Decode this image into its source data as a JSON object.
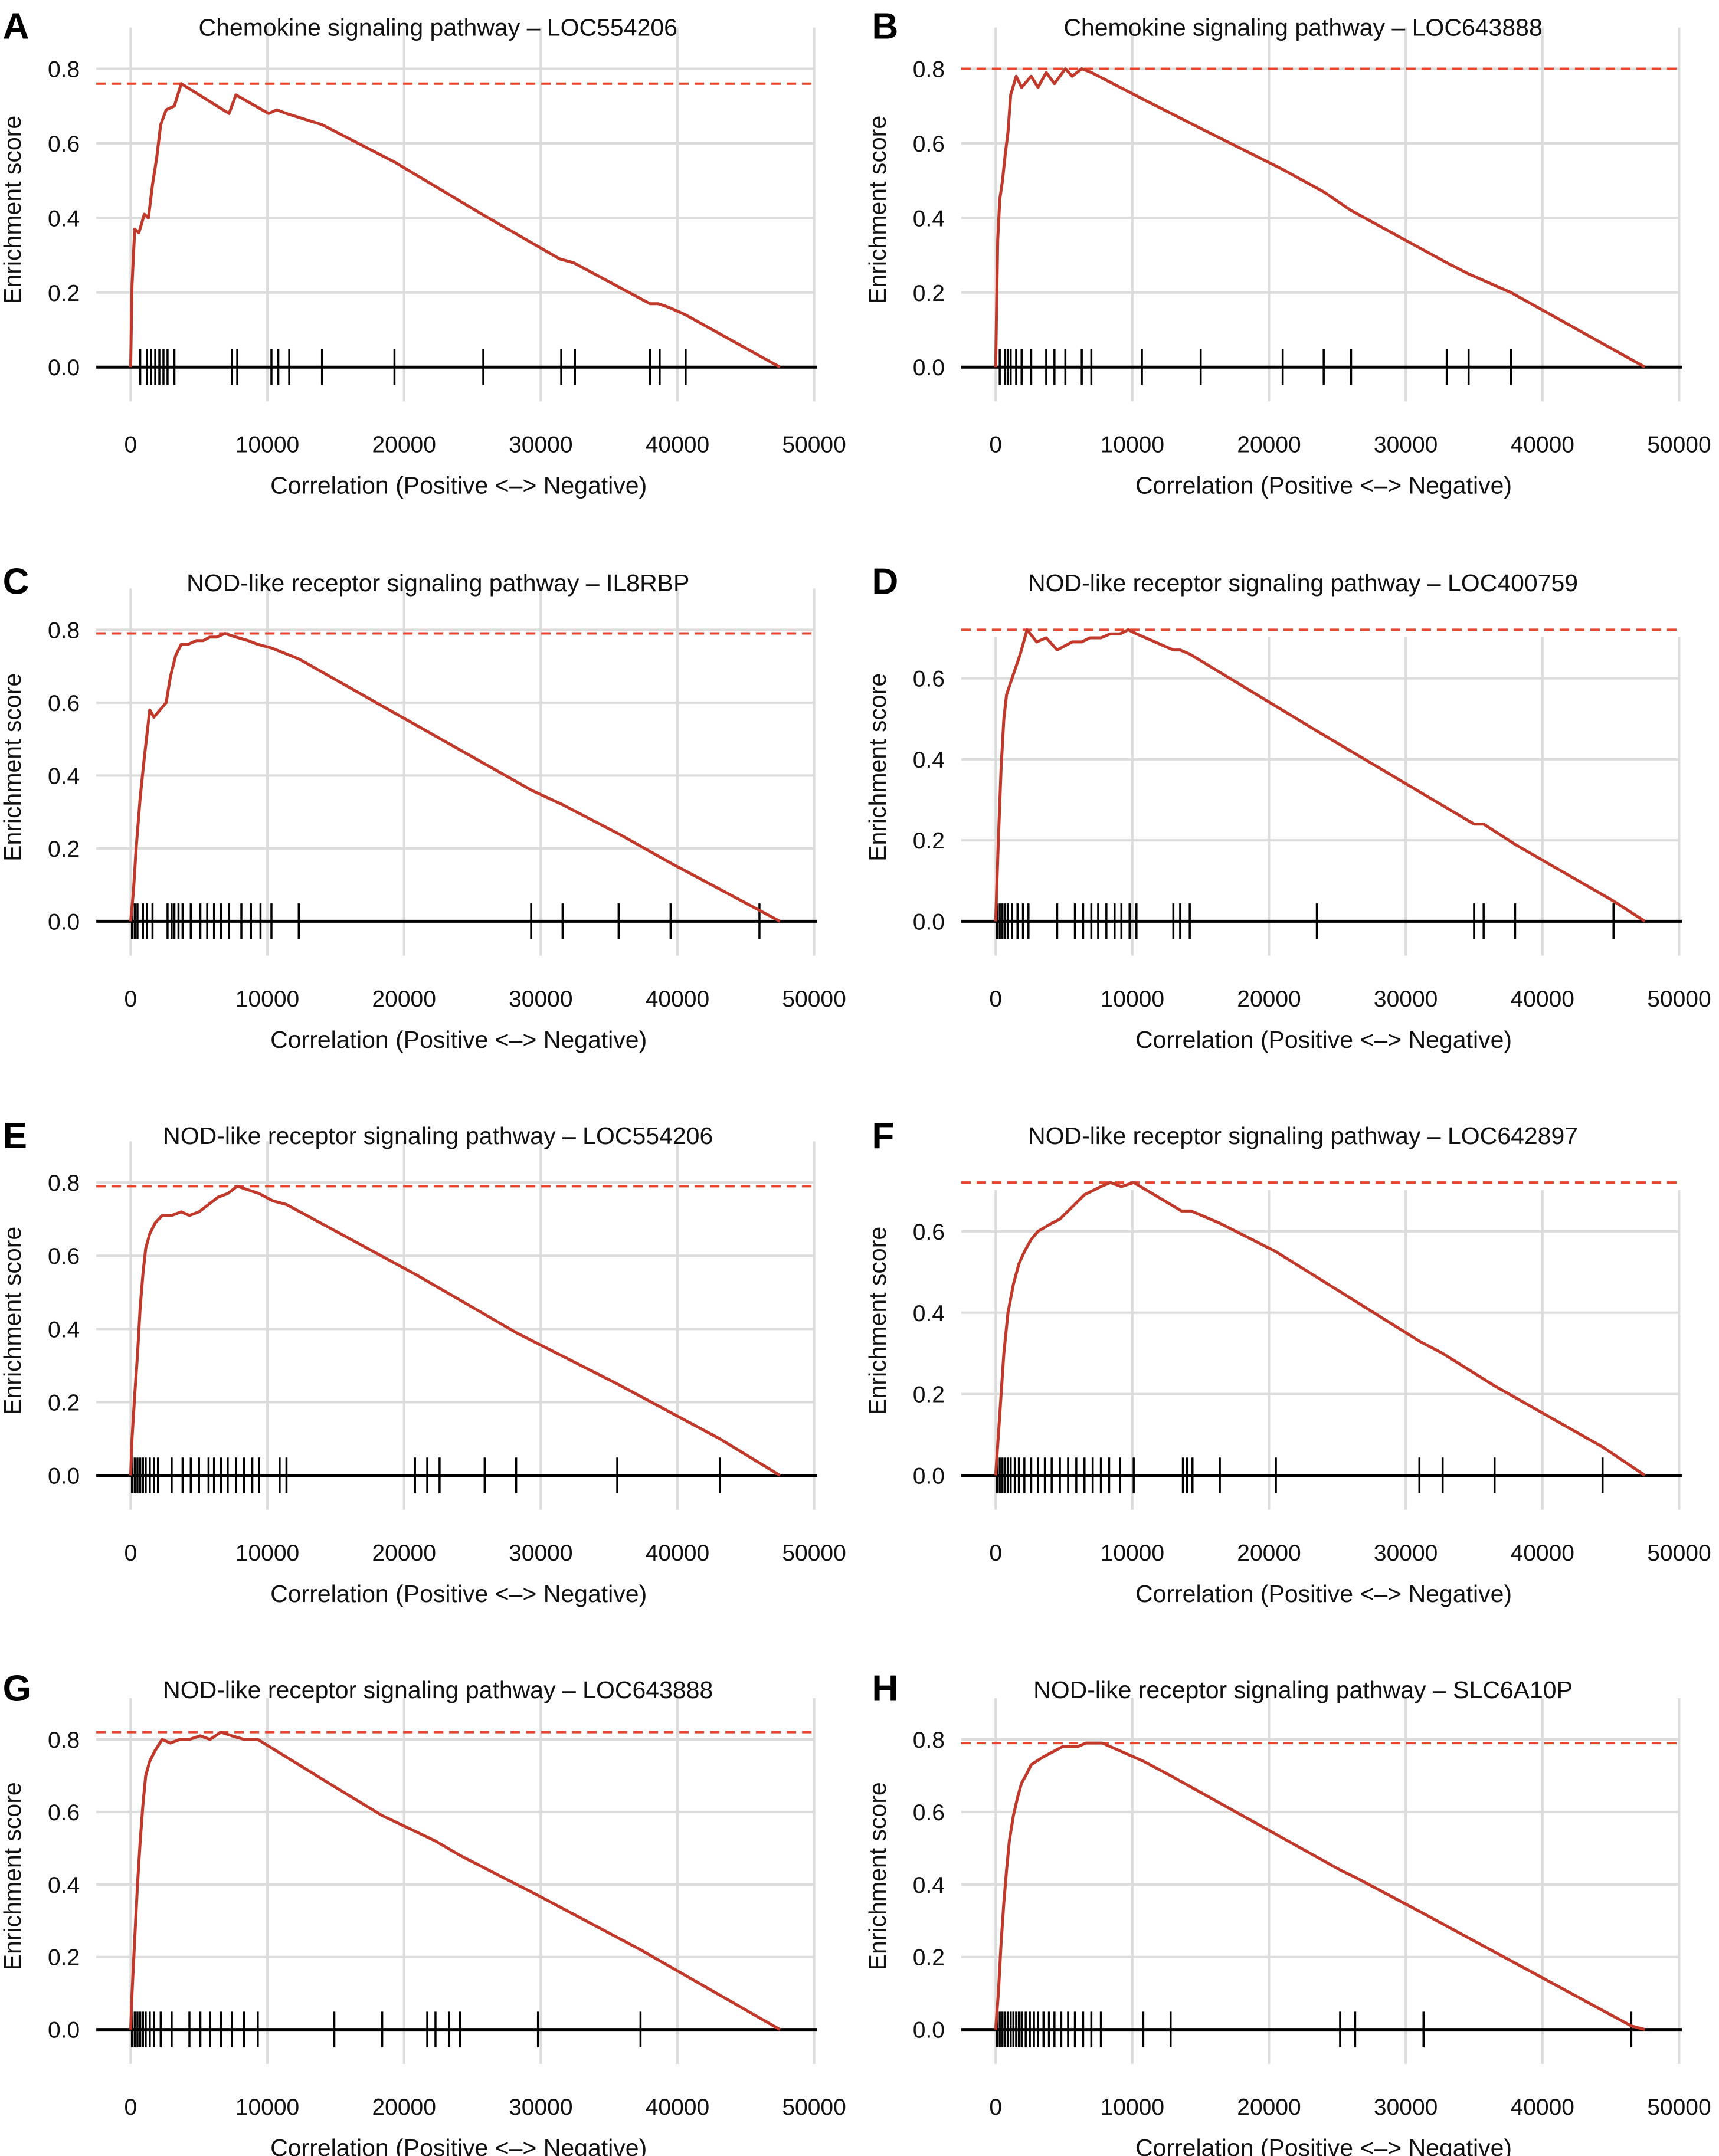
{
  "colors": {
    "curve": "#c0392b",
    "maxline": "#e8452f",
    "grid": "#dcdcdc",
    "axis": "#000000",
    "hits": "#000000"
  },
  "chart_data": [
    {
      "type": "line",
      "letter": "A",
      "title": "Chemokine signaling pathway – LOC554206",
      "xlabel": "Correlation (Positive <–> Negative)",
      "ylabel": "Enrichment score",
      "xlim": [
        0,
        50000
      ],
      "ylim": [
        0,
        0.8
      ],
      "xticks": [
        0,
        10000,
        20000,
        30000,
        40000,
        50000
      ],
      "yticks": [
        0,
        0.2,
        0.4,
        0.6,
        0.8
      ],
      "xtick_labels": [
        "0",
        "10000",
        "20000",
        "30000",
        "40000",
        "50000"
      ],
      "ytick_labels": [
        "0.0",
        "0.2",
        "0.4",
        "0.6",
        "0.8"
      ],
      "max_es": 0.76,
      "series": [
        {
          "x": [
            0,
            100,
            300,
            600,
            1000,
            1300,
            1600,
            1900,
            2200,
            2600,
            3200,
            3700,
            7200,
            7700,
            10100,
            10700,
            11400,
            14000,
            19300,
            25700,
            31400,
            32400,
            38000,
            38600,
            39400,
            40600,
            47500
          ],
          "y": [
            0,
            0.22,
            0.37,
            0.36,
            0.41,
            0.4,
            0.49,
            0.56,
            0.65,
            0.69,
            0.7,
            0.76,
            0.68,
            0.73,
            0.68,
            0.69,
            0.68,
            0.65,
            0.55,
            0.41,
            0.29,
            0.28,
            0.17,
            0.17,
            0.16,
            0.14,
            0
          ]
        }
      ],
      "hits": [
        700,
        1200,
        1500,
        1800,
        2100,
        2400,
        2700,
        3200,
        7400,
        7800,
        10300,
        10800,
        11600,
        14000,
        19300,
        25800,
        31500,
        32500,
        38000,
        38700,
        40600
      ]
    },
    {
      "type": "line",
      "letter": "B",
      "title": "Chemokine signaling pathway – LOC643888",
      "xlabel": "Correlation (Positive <–> Negative)",
      "ylabel": "Enrichment score",
      "xlim": [
        0,
        50000
      ],
      "ylim": [
        0,
        0.8
      ],
      "xticks": [
        0,
        10000,
        20000,
        30000,
        40000,
        50000
      ],
      "yticks": [
        0,
        0.2,
        0.4,
        0.6,
        0.8
      ],
      "xtick_labels": [
        "0",
        "10000",
        "20000",
        "30000",
        "40000",
        "50000"
      ],
      "ytick_labels": [
        "0.0",
        "0.2",
        "0.4",
        "0.6",
        "0.8"
      ],
      "max_es": 0.8,
      "series": [
        {
          "x": [
            0,
            150,
            300,
            500,
            700,
            900,
            1100,
            1500,
            1900,
            2600,
            3100,
            3700,
            4300,
            5100,
            5600,
            6300,
            7000,
            10700,
            15000,
            21000,
            24000,
            26000,
            33000,
            34600,
            37700,
            47500
          ],
          "y": [
            0,
            0.34,
            0.45,
            0.5,
            0.57,
            0.63,
            0.73,
            0.78,
            0.75,
            0.78,
            0.75,
            0.79,
            0.76,
            0.8,
            0.78,
            0.8,
            0.79,
            0.72,
            0.64,
            0.53,
            0.47,
            0.42,
            0.28,
            0.25,
            0.2,
            0
          ]
        }
      ],
      "hits": [
        300,
        700,
        900,
        1100,
        1500,
        1900,
        2600,
        3700,
        4300,
        5100,
        6300,
        7000,
        10700,
        15000,
        21000,
        24000,
        26000,
        33000,
        34600,
        37700
      ]
    },
    {
      "type": "line",
      "letter": "C",
      "title": "NOD-like receptor signaling pathway – IL8RBP",
      "xlabel": "Correlation (Positive <–> Negative)",
      "ylabel": "Enrichment score",
      "xlim": [
        0,
        50000
      ],
      "ylim": [
        0,
        0.8
      ],
      "xticks": [
        0,
        10000,
        20000,
        30000,
        40000,
        50000
      ],
      "yticks": [
        0,
        0.2,
        0.4,
        0.6,
        0.8
      ],
      "xtick_labels": [
        "0",
        "10000",
        "20000",
        "30000",
        "40000",
        "50000"
      ],
      "ytick_labels": [
        "0.0",
        "0.2",
        "0.4",
        "0.6",
        "0.8"
      ],
      "max_es": 0.79,
      "series": [
        {
          "x": [
            0,
            200,
            400,
            700,
            1000,
            1400,
            1700,
            2600,
            2900,
            3300,
            3700,
            4200,
            4800,
            5300,
            5800,
            6300,
            6900,
            7700,
            8600,
            9300,
            10300,
            12300,
            29300,
            31600,
            35700,
            39500,
            47500
          ],
          "y": [
            0,
            0.08,
            0.2,
            0.34,
            0.45,
            0.58,
            0.56,
            0.6,
            0.67,
            0.73,
            0.76,
            0.76,
            0.77,
            0.77,
            0.78,
            0.78,
            0.79,
            0.78,
            0.77,
            0.76,
            0.75,
            0.72,
            0.36,
            0.32,
            0.24,
            0.16,
            0
          ]
        }
      ],
      "hits": [
        100,
        300,
        500,
        900,
        1200,
        1600,
        2700,
        3000,
        3200,
        3500,
        3800,
        4400,
        5100,
        5600,
        6100,
        6600,
        7200,
        8100,
        8800,
        9500,
        10300,
        12300,
        29300,
        31600,
        35700,
        39500,
        46000
      ]
    },
    {
      "type": "line",
      "letter": "D",
      "title": "NOD-like receptor signaling pathway – LOC400759",
      "xlabel": "Correlation (Positive <–> Negative)",
      "ylabel": "Enrichment score",
      "xlim": [
        0,
        50000
      ],
      "ylim": [
        0,
        0.72
      ],
      "xticks": [
        0,
        10000,
        20000,
        30000,
        40000,
        50000
      ],
      "yticks": [
        0,
        0.2,
        0.4,
        0.6
      ],
      "xtick_labels": [
        "0",
        "10000",
        "20000",
        "30000",
        "40000",
        "50000"
      ],
      "ytick_labels": [
        "0.0",
        "0.2",
        "0.4",
        "0.6"
      ],
      "max_es": 0.72,
      "series": [
        {
          "x": [
            0,
            200,
            400,
            600,
            800,
            1100,
            1400,
            1800,
            2300,
            3000,
            3700,
            4500,
            5600,
            6300,
            6900,
            7700,
            8400,
            9100,
            9700,
            10300,
            13000,
            13500,
            14200,
            23500,
            35000,
            35700,
            38000,
            45200,
            47500
          ],
          "y": [
            0,
            0.2,
            0.38,
            0.5,
            0.56,
            0.59,
            0.62,
            0.66,
            0.72,
            0.69,
            0.7,
            0.67,
            0.69,
            0.69,
            0.7,
            0.7,
            0.71,
            0.71,
            0.72,
            0.71,
            0.67,
            0.67,
            0.66,
            0.47,
            0.24,
            0.24,
            0.19,
            0.05,
            0
          ]
        }
      ],
      "hits": [
        100,
        300,
        500,
        700,
        900,
        1200,
        1600,
        2000,
        2400,
        4500,
        5800,
        6400,
        7000,
        7500,
        8100,
        8700,
        9200,
        9800,
        10300,
        13000,
        13500,
        14200,
        23500,
        35000,
        35700,
        38000,
        45200
      ]
    },
    {
      "type": "line",
      "letter": "E",
      "title": "NOD-like receptor signaling pathway – LOC554206",
      "xlabel": "Correlation (Positive <–> Negative)",
      "ylabel": "Enrichment score",
      "xlim": [
        0,
        50000
      ],
      "ylim": [
        0,
        0.8
      ],
      "xticks": [
        0,
        10000,
        20000,
        30000,
        40000,
        50000
      ],
      "yticks": [
        0,
        0.2,
        0.4,
        0.6,
        0.8
      ],
      "xtick_labels": [
        "0",
        "10000",
        "20000",
        "30000",
        "40000",
        "50000"
      ],
      "ytick_labels": [
        "0.0",
        "0.2",
        "0.4",
        "0.6",
        "0.8"
      ],
      "max_es": 0.79,
      "series": [
        {
          "x": [
            0,
            100,
            300,
            500,
            700,
            900,
            1100,
            1400,
            1800,
            2300,
            3000,
            3700,
            4300,
            5000,
            5700,
            6400,
            7100,
            7800,
            8600,
            9400,
            10400,
            11400,
            20800,
            25900,
            28200,
            35600,
            43100,
            47500
          ],
          "y": [
            0,
            0.1,
            0.22,
            0.33,
            0.46,
            0.55,
            0.62,
            0.66,
            0.69,
            0.71,
            0.71,
            0.72,
            0.71,
            0.72,
            0.74,
            0.76,
            0.77,
            0.79,
            0.78,
            0.77,
            0.75,
            0.74,
            0.55,
            0.44,
            0.39,
            0.25,
            0.1,
            0
          ]
        }
      ],
      "hits": [
        100,
        300,
        500,
        700,
        900,
        1100,
        1400,
        1700,
        2000,
        3000,
        3800,
        4400,
        5000,
        5700,
        6100,
        6600,
        7100,
        7700,
        8300,
        8900,
        9400,
        10900,
        11400,
        20800,
        21700,
        22600,
        25900,
        28200,
        35600,
        43100
      ]
    },
    {
      "type": "line",
      "letter": "F",
      "title": "NOD-like receptor signaling pathway – LOC642897",
      "xlabel": "Correlation (Positive <–> Negative)",
      "ylabel": "Enrichment score",
      "xlim": [
        0,
        50000
      ],
      "ylim": [
        0,
        0.72
      ],
      "xticks": [
        0,
        10000,
        20000,
        30000,
        40000,
        50000
      ],
      "yticks": [
        0,
        0.2,
        0.4,
        0.6
      ],
      "xtick_labels": [
        "0",
        "10000",
        "20000",
        "30000",
        "40000",
        "50000"
      ],
      "ytick_labels": [
        "0.0",
        "0.2",
        "0.4",
        "0.6"
      ],
      "max_es": 0.72,
      "series": [
        {
          "x": [
            0,
            300,
            600,
            900,
            1300,
            1700,
            2100,
            2600,
            3100,
            3600,
            4100,
            4700,
            5300,
            5900,
            6500,
            7100,
            7700,
            8400,
            9200,
            10100,
            13600,
            14300,
            16400,
            20500,
            31000,
            32700,
            36500,
            44400,
            47500
          ],
          "y": [
            0,
            0.15,
            0.3,
            0.4,
            0.47,
            0.52,
            0.55,
            0.58,
            0.6,
            0.61,
            0.62,
            0.63,
            0.65,
            0.67,
            0.69,
            0.7,
            0.71,
            0.72,
            0.71,
            0.72,
            0.65,
            0.65,
            0.62,
            0.55,
            0.33,
            0.3,
            0.22,
            0.07,
            0
          ]
        }
      ],
      "hits": [
        100,
        300,
        500,
        700,
        900,
        1100,
        1400,
        1700,
        2100,
        2600,
        3100,
        3600,
        4100,
        4700,
        5300,
        5900,
        6500,
        7100,
        7700,
        8300,
        9100,
        10100,
        13700,
        14000,
        14400,
        16400,
        20500,
        31000,
        32700,
        36500,
        44400
      ]
    },
    {
      "type": "line",
      "letter": "G",
      "title": "NOD-like receptor signaling pathway – LOC643888",
      "xlabel": "Correlation (Positive <–> Negative)",
      "ylabel": "Enrichment score",
      "xlim": [
        0,
        50000
      ],
      "ylim": [
        0,
        0.8
      ],
      "xticks": [
        0,
        10000,
        20000,
        30000,
        40000,
        50000
      ],
      "yticks": [
        0,
        0.2,
        0.4,
        0.6,
        0.8
      ],
      "xtick_labels": [
        "0",
        "10000",
        "20000",
        "30000",
        "40000",
        "50000"
      ],
      "ytick_labels": [
        "0.0",
        "0.2",
        "0.4",
        "0.6",
        "0.8"
      ],
      "max_es": 0.82,
      "series": [
        {
          "x": [
            0,
            100,
            300,
            500,
            700,
            900,
            1100,
            1400,
            1800,
            2300,
            2900,
            3600,
            4300,
            5100,
            5800,
            6600,
            7400,
            8300,
            9300,
            14900,
            18400,
            22300,
            24100,
            29800,
            37300,
            47500
          ],
          "y": [
            0,
            0.1,
            0.25,
            0.4,
            0.52,
            0.62,
            0.7,
            0.74,
            0.77,
            0.8,
            0.79,
            0.8,
            0.8,
            0.81,
            0.8,
            0.82,
            0.81,
            0.8,
            0.8,
            0.67,
            0.59,
            0.52,
            0.48,
            0.37,
            0.22,
            0
          ]
        }
      ],
      "hits": [
        100,
        300,
        500,
        700,
        900,
        1100,
        1400,
        1700,
        2200,
        3000,
        4300,
        5100,
        5800,
        6600,
        7400,
        8300,
        9300,
        14900,
        18400,
        21700,
        22300,
        23300,
        24100,
        29800,
        37300
      ]
    },
    {
      "type": "line",
      "letter": "H",
      "title": "NOD-like receptor signaling pathway – SLC6A10P",
      "xlabel": "Correlation (Positive <–> Negative)",
      "ylabel": "Enrichment score",
      "xlim": [
        0,
        50000
      ],
      "ylim": [
        0,
        0.8
      ],
      "xticks": [
        0,
        10000,
        20000,
        30000,
        40000,
        50000
      ],
      "yticks": [
        0,
        0.2,
        0.4,
        0.6,
        0.8
      ],
      "xtick_labels": [
        "0",
        "10000",
        "20000",
        "30000",
        "40000",
        "50000"
      ],
      "ytick_labels": [
        "0.0",
        "0.2",
        "0.4",
        "0.6",
        "0.8"
      ],
      "max_es": 0.79,
      "series": [
        {
          "x": [
            0,
            200,
            400,
            600,
            800,
            1000,
            1300,
            1600,
            1900,
            2200,
            2600,
            3000,
            3400,
            3900,
            4400,
            4900,
            5400,
            6000,
            6600,
            7200,
            7800,
            10800,
            12800,
            25200,
            26300,
            31300,
            46500,
            47500
          ],
          "y": [
            0,
            0.1,
            0.24,
            0.35,
            0.44,
            0.52,
            0.59,
            0.64,
            0.68,
            0.7,
            0.73,
            0.74,
            0.75,
            0.76,
            0.77,
            0.78,
            0.78,
            0.78,
            0.79,
            0.79,
            0.79,
            0.74,
            0.7,
            0.44,
            0.42,
            0.32,
            0.01,
            0
          ]
        }
      ],
      "hits": [
        100,
        300,
        500,
        700,
        900,
        1100,
        1300,
        1500,
        1700,
        1900,
        2200,
        2500,
        2800,
        3100,
        3500,
        3900,
        4300,
        4800,
        5300,
        5800,
        6400,
        7000,
        7700,
        10800,
        12800,
        25200,
        26300,
        31300,
        46500
      ]
    }
  ]
}
